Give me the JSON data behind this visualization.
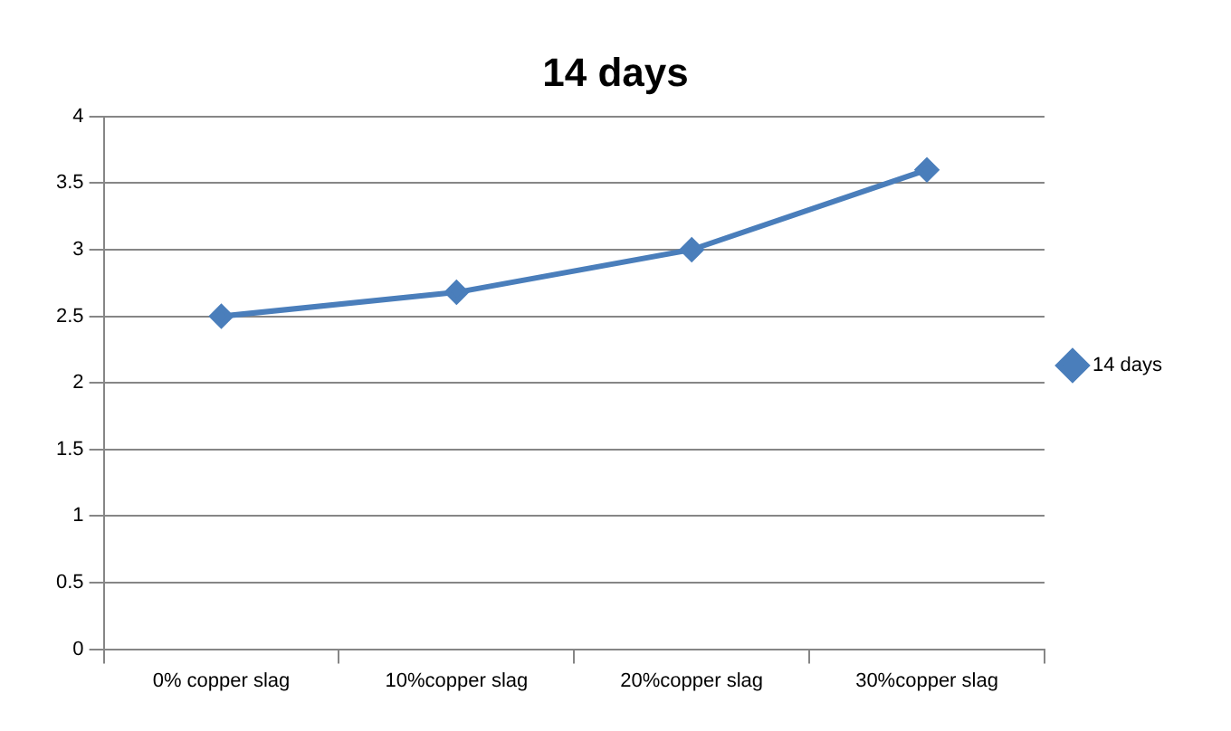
{
  "chart_data": {
    "type": "line",
    "title": "14 days",
    "categories": [
      "0% copper slag",
      "10%copper slag",
      "20%copper slag",
      "30%copper slag"
    ],
    "series": [
      {
        "name": "14 days",
        "color": "#4a7ebb",
        "values": [
          2.5,
          2.68,
          3.0,
          3.6
        ]
      }
    ],
    "ylim": [
      0,
      4
    ],
    "yticks": [
      0,
      0.5,
      1,
      1.5,
      2,
      2.5,
      3,
      3.5,
      4
    ],
    "grid": "y",
    "legend": "right",
    "marker": "diamond",
    "line_style": "solid"
  }
}
